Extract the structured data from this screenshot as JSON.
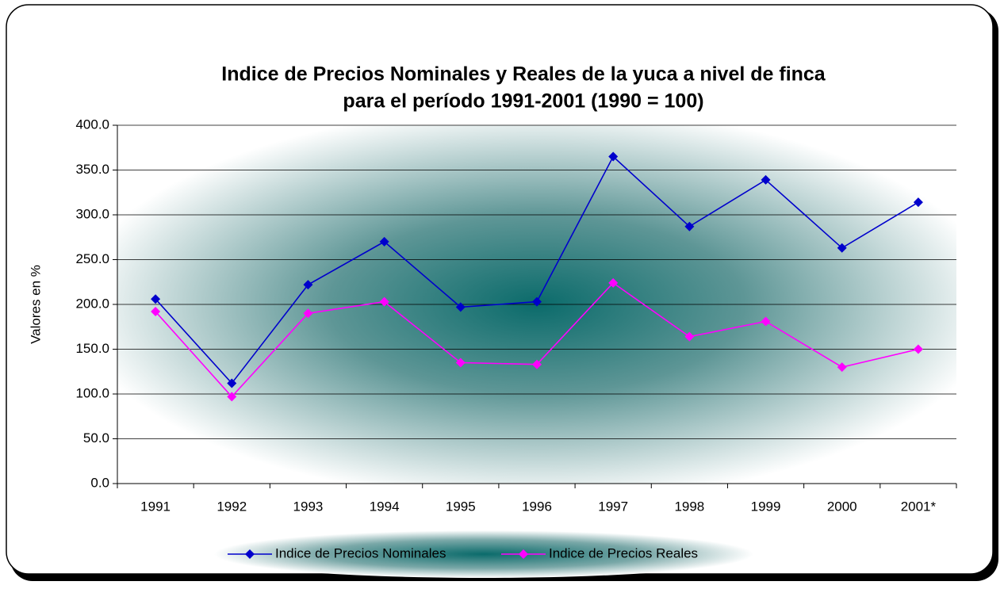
{
  "chart_data": {
    "type": "line",
    "title": [
      "Indice de Precios Nominales y Reales de la yuca a nivel de finca",
      "para el período 1991-2001  (1990 = 100)"
    ],
    "y_label": "Valores en %",
    "categories": [
      "1991",
      "1992",
      "1993",
      "1994",
      "1995",
      "1996",
      "1997",
      "1998",
      "1999",
      "2000",
      "2001*"
    ],
    "series": [
      {
        "name": "Indice de Precios Nominales",
        "color": "#0000cc",
        "values": [
          206,
          112,
          222,
          270,
          197,
          203,
          365,
          287,
          339,
          263,
          314
        ]
      },
      {
        "name": "Indice de Precios Reales",
        "color": "#ff00ff",
        "values": [
          192,
          97,
          190,
          203,
          135,
          133,
          224,
          164,
          181,
          130,
          150
        ]
      }
    ],
    "ylim": [
      0,
      400
    ],
    "yticks": [
      {
        "value": 0,
        "label": "0.0"
      },
      {
        "value": 50,
        "label": "50.0"
      },
      {
        "value": 100,
        "label": "100.0"
      },
      {
        "value": 150,
        "label": "150.0"
      },
      {
        "value": 200,
        "label": "200.0"
      },
      {
        "value": 250,
        "label": "250.0"
      },
      {
        "value": 300,
        "label": "300.0"
      },
      {
        "value": 350,
        "label": "350.0"
      },
      {
        "value": 400,
        "label": "400.0"
      }
    ],
    "grid": true,
    "legend": "bottom"
  }
}
